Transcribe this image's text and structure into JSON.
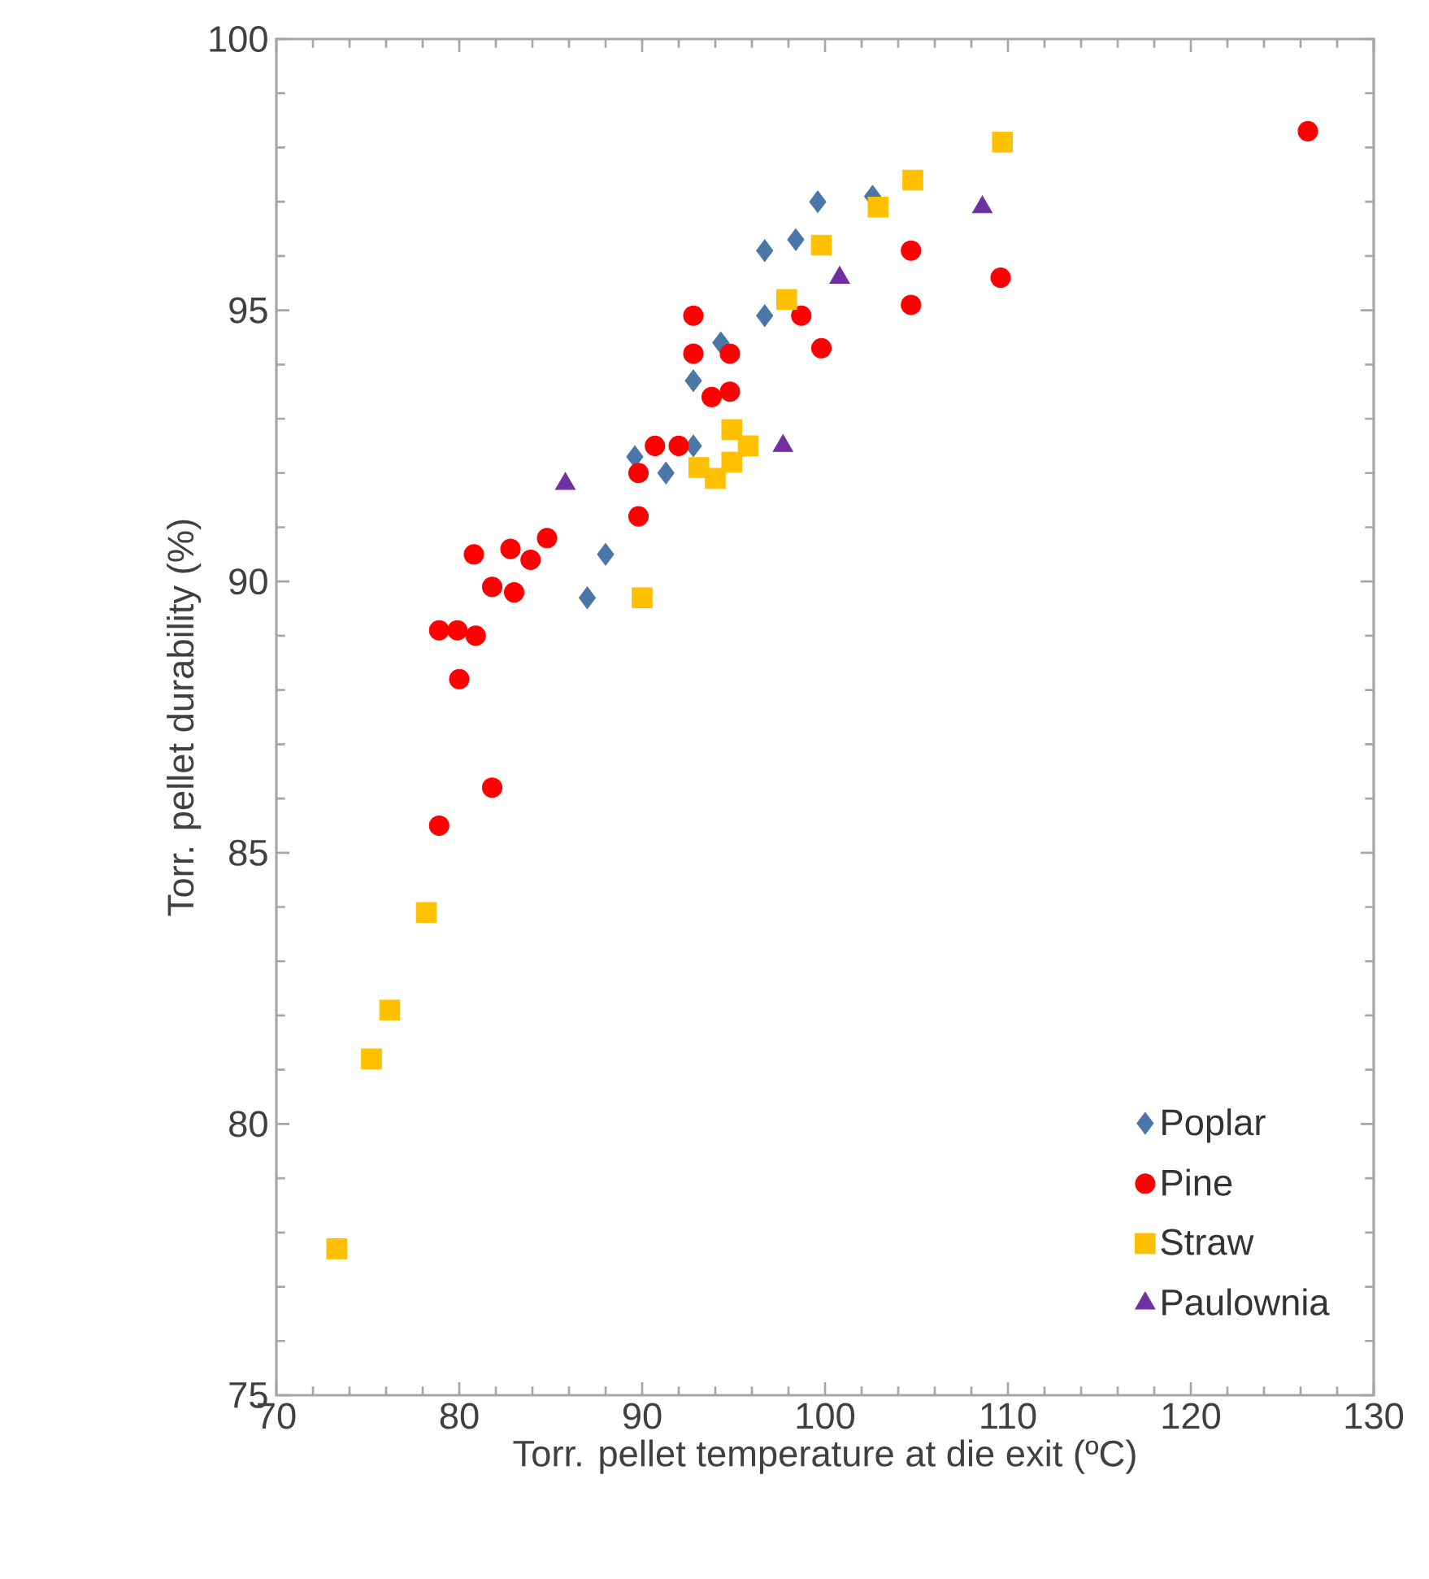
{
  "chart_data": {
    "type": "scatter",
    "xlabel": "Torr. pellet temperature at die exit (ºC)",
    "ylabel": "Torr. pellet durability (%)",
    "xlim": [
      70,
      130
    ],
    "ylim": [
      75,
      100
    ],
    "xticks": [
      70,
      80,
      90,
      100,
      110,
      120,
      130
    ],
    "yticks": [
      75,
      80,
      85,
      90,
      95,
      100
    ],
    "grid": false,
    "legend": "bottom right",
    "series": [
      {
        "name": "Poplar",
        "color": "#4a76a8",
        "marker": "diamond",
        "x": [
          87,
          88,
          89.6,
          91.3,
          92.8,
          92.8,
          94.3,
          96.7,
          96.7,
          98.4,
          99.6,
          102.6
        ],
        "values": [
          89.7,
          90.5,
          92.3,
          92.0,
          92.5,
          93.7,
          94.4,
          94.9,
          96.1,
          96.3,
          97.0,
          97.1
        ]
      },
      {
        "name": "Pine",
        "color": "#ff0000",
        "marker": "circle",
        "x": [
          78.9,
          79.9,
          80.9,
          80,
          80.8,
          81.8,
          82.8,
          83,
          83.9,
          84.8,
          78.9,
          81.8,
          89.8,
          89.8,
          90.7,
          92,
          92.8,
          92.8,
          94.8,
          94.8,
          93.8,
          98.7,
          99.8,
          104.7,
          104.7,
          109.6,
          126.4
        ],
        "values": [
          89.1,
          89.1,
          89.0,
          88.2,
          90.5,
          89.9,
          90.6,
          89.8,
          90.4,
          90.8,
          85.5,
          86.2,
          91.2,
          92.0,
          92.5,
          92.5,
          94.9,
          94.2,
          94.2,
          93.5,
          93.4,
          94.9,
          94.3,
          96.1,
          95.1,
          95.6,
          98.3
        ]
      },
      {
        "name": "Straw",
        "color": "#ffc000",
        "marker": "square",
        "x": [
          73.3,
          75.2,
          76.2,
          78.2,
          90,
          93.1,
          94,
          94.9,
          94.9,
          95.8,
          97.9,
          99.8,
          102.9,
          104.8,
          109.7
        ],
        "values": [
          77.7,
          81.2,
          82.1,
          83.9,
          89.7,
          92.1,
          91.9,
          92.2,
          92.8,
          92.5,
          95.2,
          96.2,
          96.9,
          97.4,
          98.1
        ]
      },
      {
        "name": "Paulownia",
        "color": "#7030a0",
        "marker": "triangle",
        "x": [
          85.8,
          97.7,
          100.8,
          108.6
        ],
        "values": [
          91.8,
          92.5,
          95.6,
          96.9
        ]
      }
    ]
  }
}
